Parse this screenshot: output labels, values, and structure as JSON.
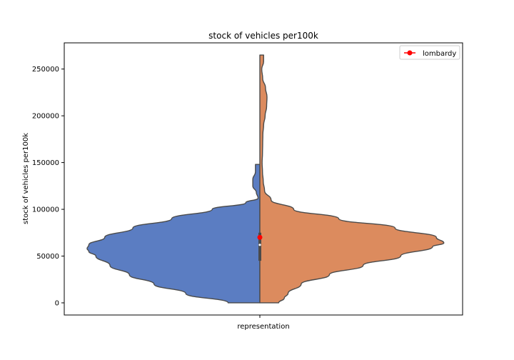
{
  "chart_data": {
    "type": "violin",
    "title": "stock of vehicles per100k",
    "xlabel": "",
    "ylabel": "stock of vehicles per100k",
    "categories": [
      "representation"
    ],
    "ylim": [
      -13000,
      278000
    ],
    "yticks": [
      0,
      50000,
      100000,
      150000,
      200000,
      250000
    ],
    "ytick_labels": [
      "0",
      "50000",
      "100000",
      "150000",
      "200000",
      "250000"
    ],
    "split": true,
    "halves": [
      {
        "side": "left",
        "color": "#5b7dc2",
        "range": [
          0,
          148000
        ],
        "density_profile": [
          [
            0,
            0.18
          ],
          [
            10000,
            0.42
          ],
          [
            20000,
            0.6
          ],
          [
            30000,
            0.74
          ],
          [
            40000,
            0.85
          ],
          [
            50000,
            0.93
          ],
          [
            55000,
            0.97
          ],
          [
            58000,
            0.98
          ],
          [
            62000,
            0.97
          ],
          [
            70000,
            0.88
          ],
          [
            80000,
            0.72
          ],
          [
            90000,
            0.5
          ],
          [
            100000,
            0.27
          ],
          [
            107000,
            0.08
          ],
          [
            112000,
            0.01
          ],
          [
            118000,
            0.02
          ],
          [
            125000,
            0.04
          ],
          [
            132000,
            0.04
          ],
          [
            140000,
            0.025
          ],
          [
            148000,
            0.025
          ]
        ]
      },
      {
        "side": "right",
        "color": "#dc8b5e",
        "range": [
          0,
          265000
        ],
        "density_profile": [
          [
            0,
            0.1
          ],
          [
            5000,
            0.13
          ],
          [
            10000,
            0.15
          ],
          [
            20000,
            0.22
          ],
          [
            30000,
            0.37
          ],
          [
            40000,
            0.55
          ],
          [
            50000,
            0.75
          ],
          [
            60000,
            0.92
          ],
          [
            64000,
            0.98
          ],
          [
            70000,
            0.94
          ],
          [
            80000,
            0.72
          ],
          [
            90000,
            0.42
          ],
          [
            100000,
            0.18
          ],
          [
            110000,
            0.06
          ],
          [
            120000,
            0.025
          ],
          [
            130000,
            0.018
          ],
          [
            140000,
            0.014
          ],
          [
            150000,
            0.012
          ],
          [
            160000,
            0.014
          ],
          [
            170000,
            0.015
          ],
          [
            180000,
            0.016
          ],
          [
            190000,
            0.02
          ],
          [
            200000,
            0.028
          ],
          [
            210000,
            0.036
          ],
          [
            220000,
            0.038
          ],
          [
            230000,
            0.03
          ],
          [
            240000,
            0.015
          ],
          [
            250000,
            0.01
          ],
          [
            258000,
            0.02
          ],
          [
            265000,
            0.02
          ]
        ]
      }
    ],
    "inner_box": {
      "q1": 45000,
      "median": 62000,
      "q3": 75000,
      "whisker_low": 45000,
      "whisker_high": 75000
    },
    "series": [
      {
        "name": "lombardy",
        "type": "point",
        "color": "#ff0000",
        "values": [
          70000
        ]
      }
    ],
    "legend": {
      "position": "top-right",
      "entries": [
        "lombardy"
      ]
    },
    "grid": false
  }
}
